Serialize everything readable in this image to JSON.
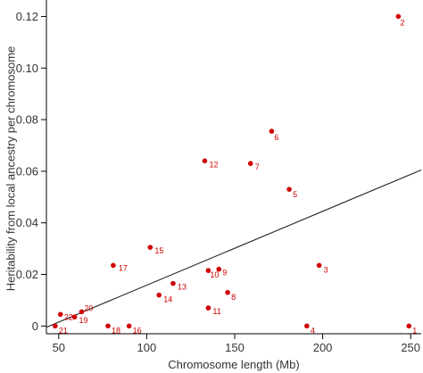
{
  "chart_data": {
    "type": "scatter",
    "title": "",
    "xlabel": "Chromosome length (Mb)",
    "ylabel": "Heritability from local ancestry per chromosome",
    "xlim": [
      43,
      256
    ],
    "ylim": [
      -0.003,
      0.125
    ],
    "xticks": [
      50,
      100,
      150,
      200,
      250
    ],
    "yticks": [
      0,
      0.02,
      0.04,
      0.06,
      0.08,
      0.1,
      0.12
    ],
    "ytick_labels": [
      "0",
      "0.02",
      "0.04",
      "0.06",
      "0.08",
      "0.10",
      "0.12"
    ],
    "grid": false,
    "point_color": "#d00000",
    "points": [
      {
        "label": "1",
        "x": 249,
        "y": 0.0
      },
      {
        "label": "2",
        "x": 243,
        "y": 0.12
      },
      {
        "label": "3",
        "x": 198,
        "y": 0.0235
      },
      {
        "label": "4",
        "x": 191,
        "y": 0.0
      },
      {
        "label": "5",
        "x": 181,
        "y": 0.053
      },
      {
        "label": "6",
        "x": 171,
        "y": 0.0755
      },
      {
        "label": "7",
        "x": 159,
        "y": 0.063
      },
      {
        "label": "8",
        "x": 146,
        "y": 0.013
      },
      {
        "label": "9",
        "x": 141,
        "y": 0.022
      },
      {
        "label": "10",
        "x": 135,
        "y": 0.0215
      },
      {
        "label": "11",
        "x": 135,
        "y": 0.007
      },
      {
        "label": "12",
        "x": 133,
        "y": 0.064
      },
      {
        "label": "13",
        "x": 115,
        "y": 0.0165
      },
      {
        "label": "14",
        "x": 107,
        "y": 0.012
      },
      {
        "label": "15",
        "x": 102,
        "y": 0.0305
      },
      {
        "label": "16",
        "x": 90,
        "y": 0.0
      },
      {
        "label": "17",
        "x": 81,
        "y": 0.0235
      },
      {
        "label": "18",
        "x": 78,
        "y": 0.0
      },
      {
        "label": "19",
        "x": 59,
        "y": 0.0035
      },
      {
        "label": "20",
        "x": 63,
        "y": 0.0055
      },
      {
        "label": "21",
        "x": 48,
        "y": 0.0
      },
      {
        "label": "22",
        "x": 51,
        "y": 0.0045
      }
    ],
    "trendline": {
      "x": [
        43,
        256
      ],
      "y": [
        -0.0005,
        0.0605
      ]
    }
  }
}
